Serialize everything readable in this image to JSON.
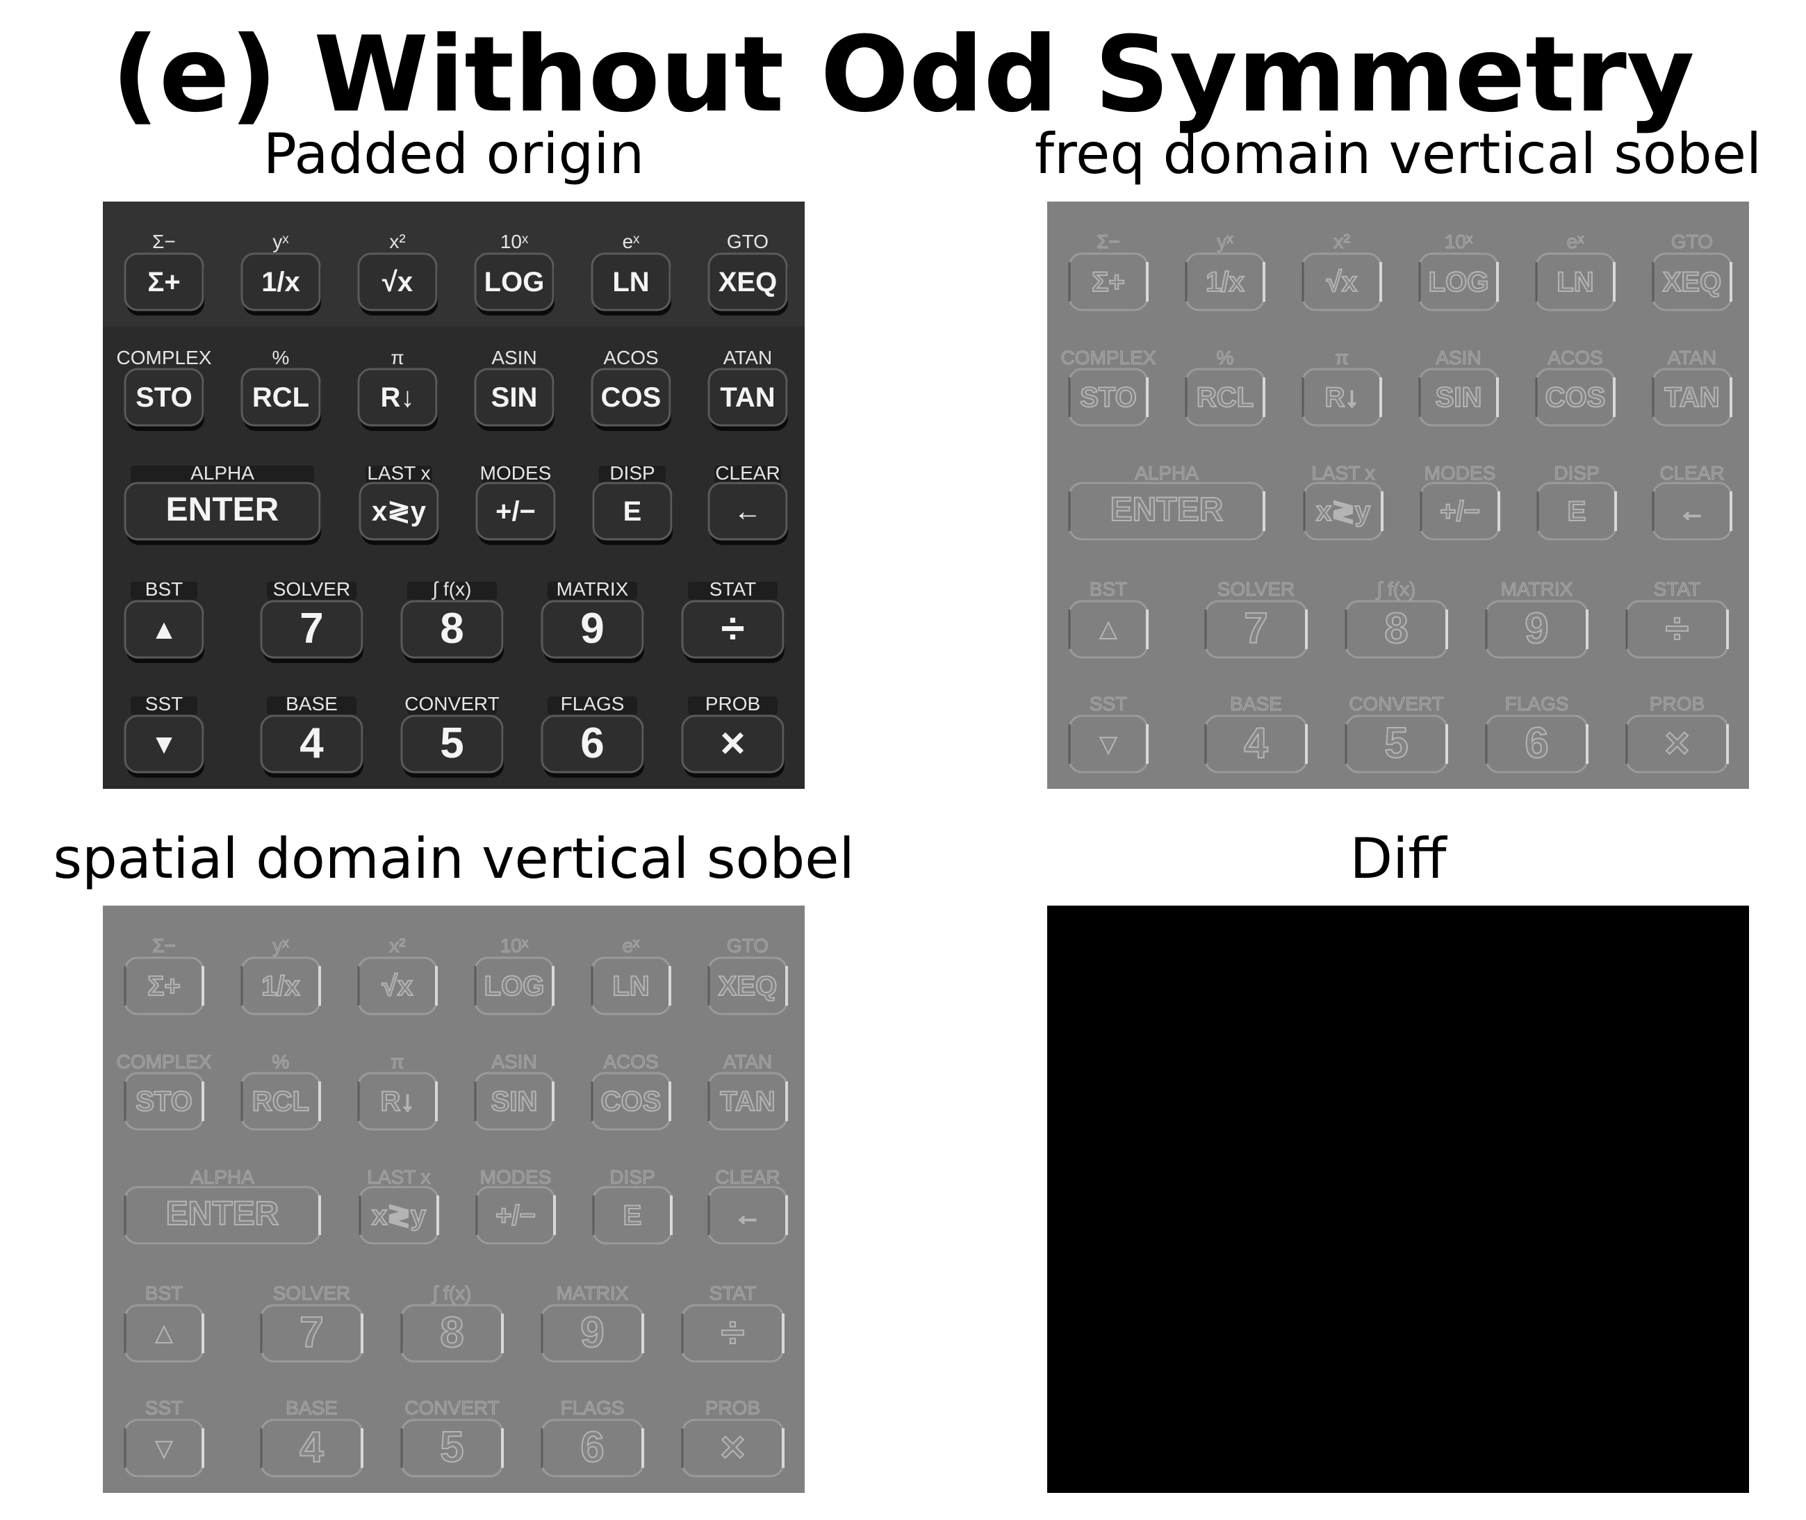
{
  "figure": {
    "title": "(e) Without Odd Symmetry"
  },
  "panels": [
    {
      "title": "Padded origin",
      "style": "photo"
    },
    {
      "title": "freq domain vertical sobel",
      "style": "emboss"
    },
    {
      "title": "spatial domain vertical sobel",
      "style": "emboss"
    },
    {
      "title": "Diff",
      "style": "black"
    }
  ],
  "keypad": {
    "rows": [
      {
        "keys": [
          {
            "above": "Σ−",
            "label": "Σ+"
          },
          {
            "above": "yˣ",
            "label": "1/x"
          },
          {
            "above": "x²",
            "label": "√x"
          },
          {
            "above": "10ˣ",
            "label": "LOG"
          },
          {
            "above": "eˣ",
            "label": "LN"
          },
          {
            "above": "GTO",
            "label": "XEQ"
          }
        ]
      },
      {
        "keys": [
          {
            "above": "COMPLEX",
            "label": "STO"
          },
          {
            "above": "%",
            "label": "RCL"
          },
          {
            "above": "π",
            "label": "R↓"
          },
          {
            "above": "ASIN",
            "label": "SIN"
          },
          {
            "above": "ACOS",
            "label": "COS"
          },
          {
            "above": "ATAN",
            "label": "TAN"
          }
        ]
      },
      {
        "keys": [
          {
            "above": "ALPHA",
            "label": "ENTER",
            "wide": true
          },
          {
            "above": "LAST x",
            "label": "x≷y"
          },
          {
            "above": "MODES",
            "label": "+/−"
          },
          {
            "above": "DISP",
            "label": "E"
          },
          {
            "above": "CLEAR",
            "label": "←"
          }
        ]
      },
      {
        "keys": [
          {
            "above": "BST",
            "label": "▲"
          },
          {
            "above": "SOLVER",
            "label": "7"
          },
          {
            "above": "∫ f(x)",
            "label": "8"
          },
          {
            "above": "MATRIX",
            "label": "9"
          },
          {
            "above": "STAT",
            "label": "÷"
          }
        ]
      },
      {
        "keys": [
          {
            "above": "SST",
            "label": "▼"
          },
          {
            "above": "BASE",
            "label": "4"
          },
          {
            "above": "CONVERT",
            "label": "5"
          },
          {
            "above": "FLAGS",
            "label": "6"
          },
          {
            "above": "PROB",
            "label": "×"
          }
        ]
      }
    ]
  },
  "colors": {
    "photo_background": "#2b2b2b",
    "emboss_background": "#808080",
    "diff_background": "#000000"
  }
}
